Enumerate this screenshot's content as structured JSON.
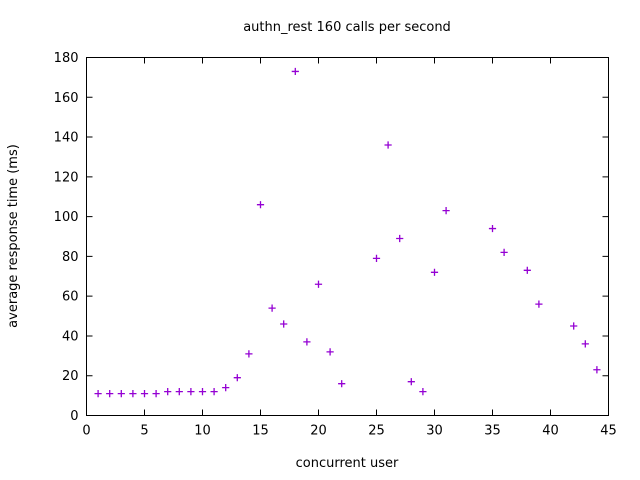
{
  "window": {
    "background": "#ffffff"
  },
  "chart_data": {
    "type": "scatter",
    "title": "authn_rest 160 calls per second",
    "xlabel": "concurrent user",
    "ylabel": "average response time (ms)",
    "xlim": [
      0,
      45
    ],
    "ylim": [
      0,
      180
    ],
    "xtick_step": 5,
    "ytick_step": 20,
    "grid": false,
    "legend_position": "none",
    "marker": "plus",
    "marker_color": "#9400D3",
    "axis_color": "#000000",
    "text_color": "#000000",
    "x": [
      1,
      2,
      3,
      4,
      5,
      6,
      7,
      8,
      9,
      10,
      11,
      12,
      13,
      14,
      15,
      16,
      17,
      18,
      19,
      20,
      21,
      22,
      25,
      26,
      27,
      28,
      29,
      30,
      31,
      35,
      36,
      38,
      39,
      42,
      43,
      44
    ],
    "y": [
      11,
      11,
      11,
      11,
      11,
      11,
      12,
      12,
      12,
      12,
      12,
      14,
      19,
      31,
      106,
      54,
      46,
      173,
      37,
      66,
      32,
      16,
      79,
      136,
      89,
      17,
      12,
      72,
      103,
      94,
      82,
      73,
      56,
      45,
      36,
      23
    ]
  }
}
